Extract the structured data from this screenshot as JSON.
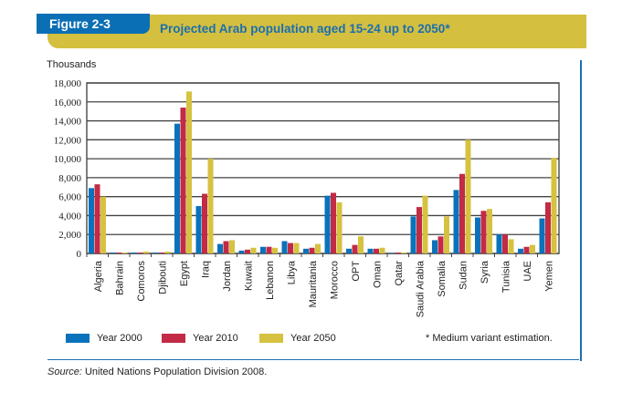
{
  "figure_label": "Figure 2-3",
  "chart_data": {
    "type": "bar",
    "title": "Projected Arab population aged 15-24 up to 2050*",
    "ylabel": "Thousands",
    "xlabel": "",
    "ylim": [
      0,
      18000
    ],
    "yticks": [
      "0",
      "2,000",
      "4,000",
      "6,000",
      "8,000",
      "10,000",
      "12,000",
      "14,000",
      "16,000",
      "18,000"
    ],
    "grid": true,
    "legend_placement": "bottom",
    "categories": [
      "Algeria",
      "Bahrain",
      "Comoros",
      "Djibouti",
      "Egypt",
      "Iraq",
      "Jordan",
      "Kuwait",
      "Lebanon",
      "Libya",
      "Mauritania",
      "Morocco",
      "OPT",
      "Oman",
      "Qatar",
      "Saudi Arabia",
      "Somalia",
      "Sudan",
      "Syria",
      "Tunisia",
      "UAE",
      "Yemen"
    ],
    "series": [
      {
        "name": "Year 2000",
        "color": "#0a72bb",
        "values": [
          6900,
          100,
          100,
          100,
          13700,
          5000,
          1000,
          300,
          700,
          1300,
          500,
          6100,
          500,
          500,
          50,
          3900,
          1400,
          6700,
          3800,
          2000,
          500,
          3700
        ]
      },
      {
        "name": "Year 2010",
        "color": "#c22a45",
        "values": [
          7300,
          100,
          100,
          100,
          15400,
          6300,
          1300,
          400,
          700,
          1100,
          600,
          6400,
          900,
          500,
          100,
          4900,
          1800,
          8400,
          4500,
          2000,
          700,
          5400
        ]
      },
      {
        "name": "Year 2050",
        "color": "#d6c240",
        "values": [
          6000,
          100,
          200,
          200,
          17100,
          10000,
          1400,
          600,
          600,
          1100,
          1000,
          5400,
          1800,
          600,
          100,
          6100,
          3900,
          12000,
          4700,
          1500,
          900,
          10100
        ]
      }
    ]
  },
  "note": "* Medium variant estimation.",
  "source": {
    "label": "Source:",
    "text": " United Nations Population Division 2008."
  }
}
